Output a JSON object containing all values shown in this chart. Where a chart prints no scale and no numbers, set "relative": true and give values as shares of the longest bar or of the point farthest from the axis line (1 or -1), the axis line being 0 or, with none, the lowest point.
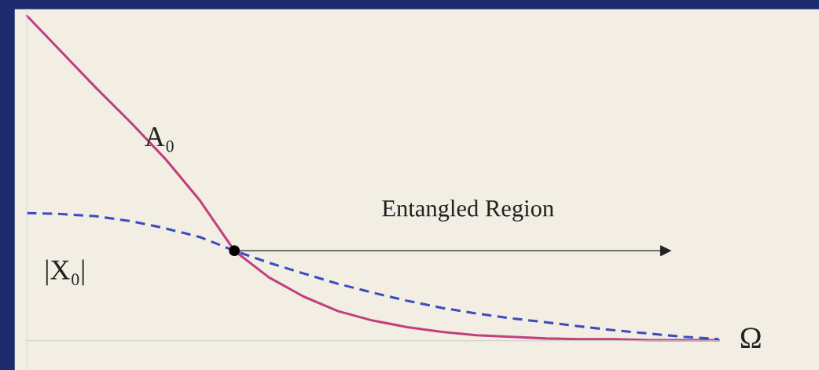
{
  "chart_data": {
    "type": "line",
    "relative": true,
    "xlabel": "Ω",
    "categories": [
      null,
      null,
      null,
      null,
      null,
      null,
      null,
      null,
      null,
      null,
      null,
      null,
      null,
      null,
      null,
      null,
      null,
      null,
      null,
      null,
      null
    ],
    "series": [
      {
        "name": "A₀",
        "color": "#c0407e",
        "line_style": "solid",
        "values": [
          1.0,
          0.889,
          0.778,
          0.672,
          0.56,
          0.432,
          0.277,
          0.195,
          0.136,
          0.091,
          0.062,
          0.042,
          0.027,
          0.017,
          0.012,
          0.007,
          0.005,
          0.005,
          0.002,
          0.002,
          0.002
        ]
      },
      {
        "name": "|X₀|",
        "color": "#3b4cc0",
        "line_style": "dashed",
        "values": [
          0.393,
          0.39,
          0.383,
          0.368,
          0.346,
          0.319,
          0.277,
          0.24,
          0.207,
          0.175,
          0.148,
          0.123,
          0.101,
          0.084,
          0.069,
          0.057,
          0.044,
          0.032,
          0.022,
          0.012,
          0.005
        ]
      }
    ],
    "annotations": [
      "Entangled Region"
    ],
    "legend": false
  }
}
